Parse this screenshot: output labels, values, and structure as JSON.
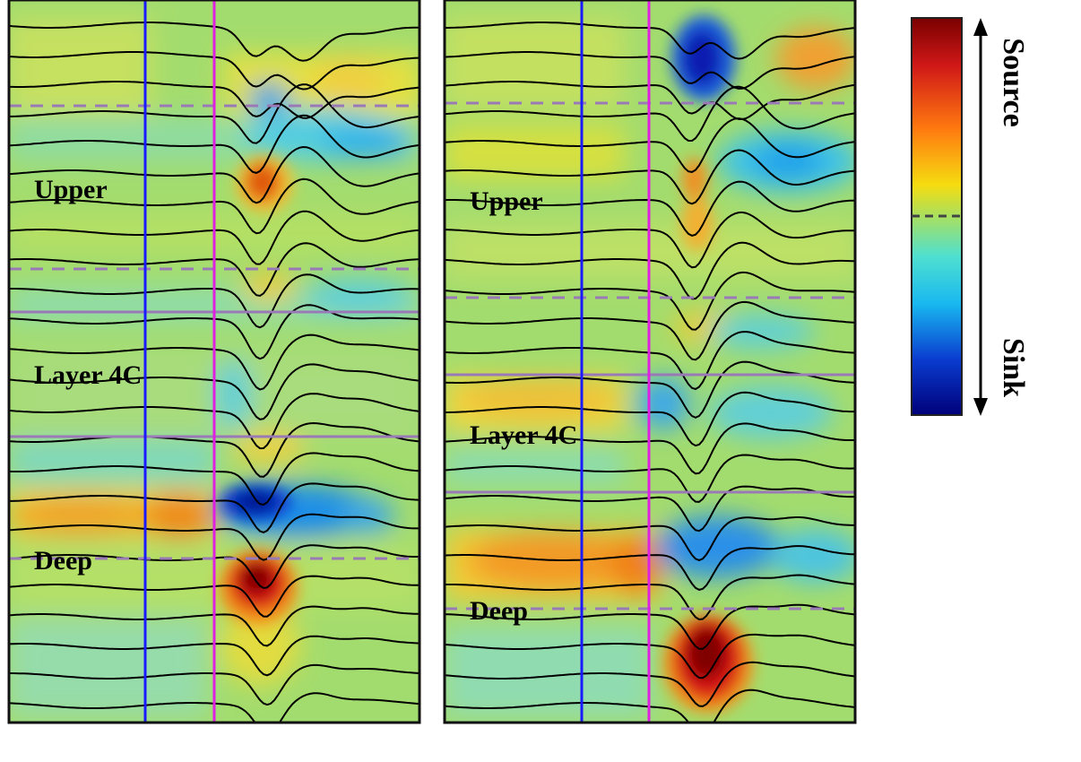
{
  "panels": [
    {
      "id": "left",
      "layer_labels": {
        "upper": "Upper",
        "layer4c": "Layer 4C",
        "deep": "Deep"
      },
      "regions": [
        {
          "type": "source",
          "level": 0.7
        },
        {
          "type": "sink",
          "level": 0.6
        },
        {
          "type": "source",
          "level": 0.95
        }
      ]
    },
    {
      "id": "right",
      "layer_labels": {
        "upper": "Upper",
        "layer4c": "Layer 4C",
        "deep": "Deep"
      },
      "regions": [
        {
          "type": "sink",
          "level": 0.9
        },
        {
          "type": "source",
          "level": 0.5
        },
        {
          "type": "source",
          "level": 1.0
        }
      ]
    }
  ],
  "colorbar": {
    "top_label": "Source",
    "bottom_label": "Sink",
    "colors": [
      "#7a0000",
      "#d01818",
      "#ff7a10",
      "#f5dc10",
      "#a8e060",
      "#4fe0d0",
      "#18b8f0",
      "#0a3ccf",
      "#00007a"
    ]
  },
  "colors": {
    "background": "#a3dc6e",
    "source_light": "#f2e042",
    "source_mid": "#f08a1a",
    "source_strong": "#a80000",
    "sink_light": "#4fd8d6",
    "sink_mid": "#1f8ee8",
    "sink_strong": "#0018a8",
    "stimulus_onset_line": "#1a1aff",
    "response_line": "#e020e0",
    "boundary_line": "#9a7ab6",
    "trace": "#000000"
  }
}
